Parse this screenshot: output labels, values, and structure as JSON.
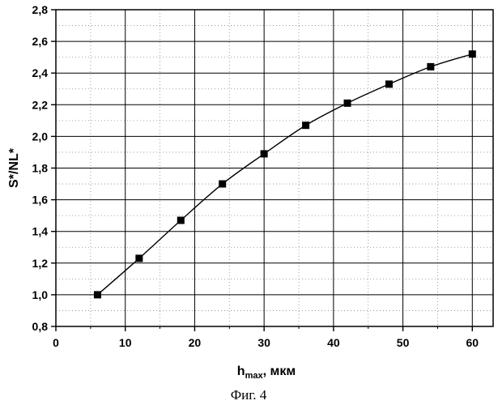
{
  "chart_data": {
    "type": "scatter",
    "title": "",
    "xlabel": {
      "main": "h",
      "sub": "max",
      "rest": ", мкм"
    },
    "ylabel": "S*/NL*",
    "xlim": [
      0,
      63
    ],
    "ylim": [
      0.8,
      2.8
    ],
    "x_ticks": [
      0,
      10,
      20,
      30,
      40,
      50,
      60
    ],
    "x_tick_labels": [
      "0",
      "10",
      "20",
      "30",
      "40",
      "50",
      "60"
    ],
    "y_ticks": [
      0.8,
      1.0,
      1.2,
      1.4,
      1.6,
      1.8,
      2.0,
      2.2,
      2.4,
      2.6,
      2.8
    ],
    "y_tick_labels": [
      "0,8",
      "1,0",
      "1,2",
      "1,4",
      "1,6",
      "1,8",
      "2,0",
      "2,2",
      "2,4",
      "2,6",
      "2,8"
    ],
    "grid": true,
    "series": [
      {
        "marker": "square",
        "line": "smooth",
        "x": [
          6,
          12,
          18,
          24,
          30,
          36,
          42,
          48,
          54,
          60
        ],
        "y": [
          1.0,
          1.23,
          1.47,
          1.7,
          1.89,
          2.07,
          2.21,
          2.33,
          2.44,
          2.52
        ]
      }
    ]
  },
  "caption": "Фиг. 4"
}
